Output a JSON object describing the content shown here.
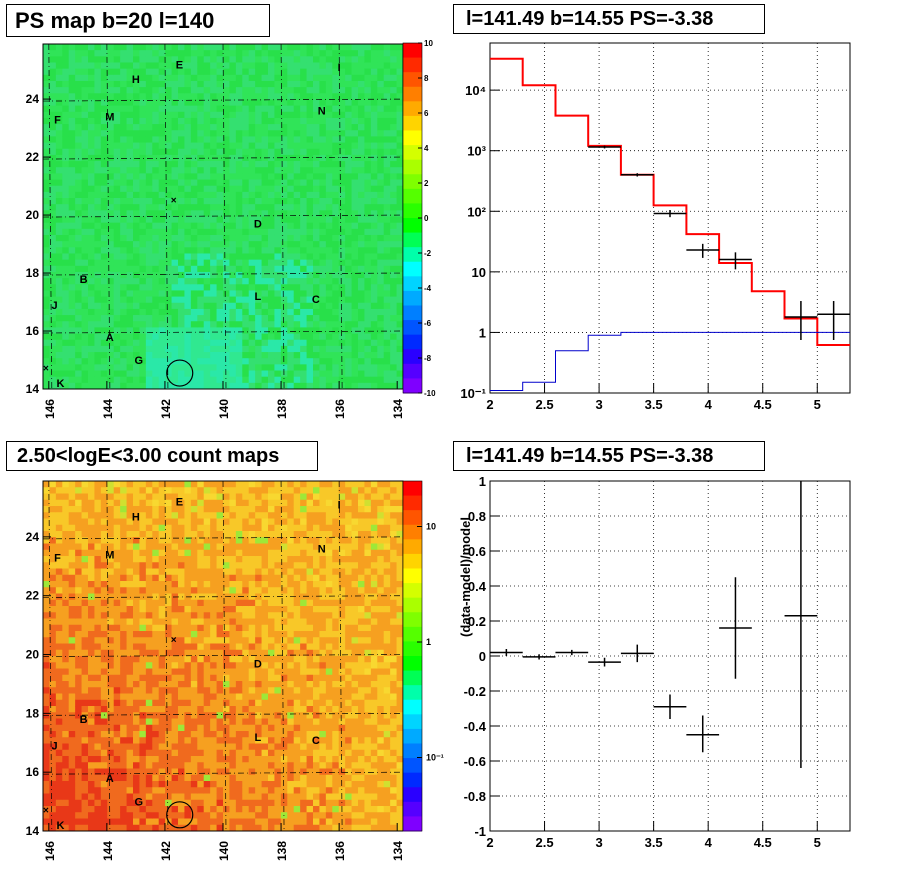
{
  "titles": {
    "ps_map": "PS map b=20 l=140",
    "spectrum": "l=141.49 b=14.55 PS=-3.38",
    "count_map": "2.50<logE<3.00 count maps",
    "residual": "l=141.49 b=14.55 PS=-3.38"
  },
  "source_labels": [
    "H",
    "E",
    "I",
    "F",
    "M",
    "N",
    "D",
    "B",
    "J",
    "L",
    "C",
    "A",
    "G",
    "K"
  ],
  "chart_data": [
    {
      "type": "heatmap",
      "name": "ps-map",
      "title": "PS map b=20 l=140",
      "x_ticks": [
        "146",
        "144",
        "142",
        "140",
        "138",
        "136",
        "134"
      ],
      "y_ticks": [
        "14",
        "16",
        "18",
        "20",
        "22",
        "24"
      ],
      "xlim": [
        146.2,
        133.8
      ],
      "ylim": [
        14,
        25.9
      ],
      "colorbar_ticks": [
        "10",
        "8",
        "6",
        "4",
        "2",
        "0",
        "-2",
        "-4",
        "-6",
        "-8",
        "-10"
      ],
      "colorbar_range": [
        -10,
        10
      ],
      "dominant_color": "#28e04a",
      "circle_marker": {
        "l": 141.49,
        "b": 14.55
      },
      "sources": [
        {
          "label": "H",
          "l": 143.0,
          "b": 24.7
        },
        {
          "label": "E",
          "l": 141.5,
          "b": 25.2
        },
        {
          "label": "I",
          "l": 136.0,
          "b": 25.1
        },
        {
          "label": "F",
          "l": 145.7,
          "b": 23.3
        },
        {
          "label": "M",
          "l": 143.9,
          "b": 23.4
        },
        {
          "label": "N",
          "l": 136.6,
          "b": 23.6
        },
        {
          "label": "D",
          "l": 138.8,
          "b": 19.7
        },
        {
          "label": "B",
          "l": 144.8,
          "b": 17.8
        },
        {
          "label": "J",
          "l": 145.8,
          "b": 16.9
        },
        {
          "label": "L",
          "l": 138.8,
          "b": 17.2
        },
        {
          "label": "C",
          "l": 136.8,
          "b": 17.1
        },
        {
          "label": "A",
          "l": 143.9,
          "b": 15.8
        },
        {
          "label": "G",
          "l": 142.9,
          "b": 15.0
        },
        {
          "label": "K",
          "l": 145.6,
          "b": 14.2
        }
      ]
    },
    {
      "type": "line",
      "name": "spectrum",
      "title": "l=141.49 b=14.55 PS=-3.38",
      "x_ticks": [
        "2",
        "2.5",
        "3",
        "3.5",
        "4",
        "4.5",
        "5"
      ],
      "y_ticks": [
        "10⁻¹",
        "1",
        "10",
        "10²",
        "10³",
        "10⁴"
      ],
      "xlim": [
        2,
        5.3
      ],
      "ylim": [
        0.1,
        60000
      ],
      "log_y": true,
      "grid": true,
      "series": [
        {
          "color": "#ff0000",
          "edges": [
            2,
            2.3,
            2.6,
            2.9,
            3.2,
            3.5,
            3.8,
            4.1,
            4.4,
            4.7,
            5.0,
            5.3
          ],
          "values": [
            33000,
            12000,
            3800,
            1200,
            400,
            125,
            42,
            14,
            4.8,
            1.7,
            0.62
          ]
        },
        {
          "color": "#0000cc",
          "edges": [
            2,
            2.3,
            2.6,
            2.9,
            3.2,
            3.5,
            3.8,
            4.1,
            4.4,
            4.7,
            5.0,
            5.3
          ],
          "values": [
            0.11,
            0.15,
            0.5,
            0.9,
            1.0,
            1.0,
            1.0,
            1.0,
            1.0,
            1.0,
            1.0
          ]
        },
        {
          "color": "#000000",
          "points": [
            {
              "x": 3.05,
              "y": 1150,
              "xerr": 0.15,
              "ylo": 1090,
              "yhi": 1210
            },
            {
              "x": 3.35,
              "y": 400,
              "xerr": 0.15,
              "ylo": 375,
              "yhi": 425
            },
            {
              "x": 3.65,
              "y": 92,
              "xerr": 0.15,
              "ylo": 80,
              "yhi": 105
            },
            {
              "x": 3.95,
              "y": 23,
              "xerr": 0.15,
              "ylo": 17,
              "yhi": 29
            },
            {
              "x": 4.25,
              "y": 16,
              "xerr": 0.15,
              "ylo": 11,
              "yhi": 21
            },
            {
              "x": 4.85,
              "y": 1.8,
              "xerr": 0.15,
              "ylo": 0.75,
              "yhi": 3.3
            },
            {
              "x": 5.15,
              "y": 2.0,
              "xerr": 0.15,
              "ylo": 0.75,
              "yhi": 3.3
            }
          ]
        }
      ]
    },
    {
      "type": "heatmap",
      "name": "count-map",
      "title": "2.50<logE<3.00 count maps",
      "x_ticks": [
        "146",
        "144",
        "142",
        "140",
        "138",
        "136",
        "134"
      ],
      "y_ticks": [
        "14",
        "16",
        "18",
        "20",
        "22",
        "24"
      ],
      "xlim": [
        146.2,
        133.8
      ],
      "ylim": [
        14,
        25.9
      ],
      "colorbar_ticks": [
        "10",
        "1",
        "10⁻¹"
      ],
      "log_z": true,
      "dominant_color": "#f6a020",
      "circle_marker": {
        "l": 141.49,
        "b": 14.55
      }
    },
    {
      "type": "scatter",
      "name": "residual",
      "title": "l=141.49 b=14.55 PS=-3.38",
      "ylabel": "(data-model)/model",
      "x_ticks": [
        "2",
        "2.5",
        "3",
        "3.5",
        "4",
        "4.5",
        "5"
      ],
      "y_ticks": [
        "-1",
        "-0.8",
        "-0.6",
        "-0.4",
        "-0.2",
        "0",
        "0.2",
        "0.4",
        "0.6",
        "0.8",
        "1"
      ],
      "xlim": [
        2,
        5.3
      ],
      "ylim": [
        -1,
        1
      ],
      "grid": true,
      "points": [
        {
          "x": 2.15,
          "y": 0.02,
          "xerr": 0.15,
          "ylo": 0.0,
          "yhi": 0.04
        },
        {
          "x": 2.45,
          "y": -0.005,
          "xerr": 0.15,
          "ylo": -0.02,
          "yhi": 0.01
        },
        {
          "x": 2.75,
          "y": 0.02,
          "xerr": 0.15,
          "ylo": 0.005,
          "yhi": 0.035
        },
        {
          "x": 3.05,
          "y": -0.035,
          "xerr": 0.15,
          "ylo": -0.06,
          "yhi": -0.01
        },
        {
          "x": 3.35,
          "y": 0.015,
          "xerr": 0.15,
          "ylo": -0.035,
          "yhi": 0.065
        },
        {
          "x": 3.65,
          "y": -0.29,
          "xerr": 0.15,
          "ylo": -0.36,
          "yhi": -0.22
        },
        {
          "x": 3.95,
          "y": -0.45,
          "xerr": 0.15,
          "ylo": -0.55,
          "yhi": -0.34
        },
        {
          "x": 4.25,
          "y": 0.16,
          "xerr": 0.15,
          "ylo": -0.13,
          "yhi": 0.45
        },
        {
          "x": 4.85,
          "y": 0.23,
          "xerr": 0.15,
          "ylo": -0.64,
          "yhi": 1.0
        }
      ]
    }
  ]
}
